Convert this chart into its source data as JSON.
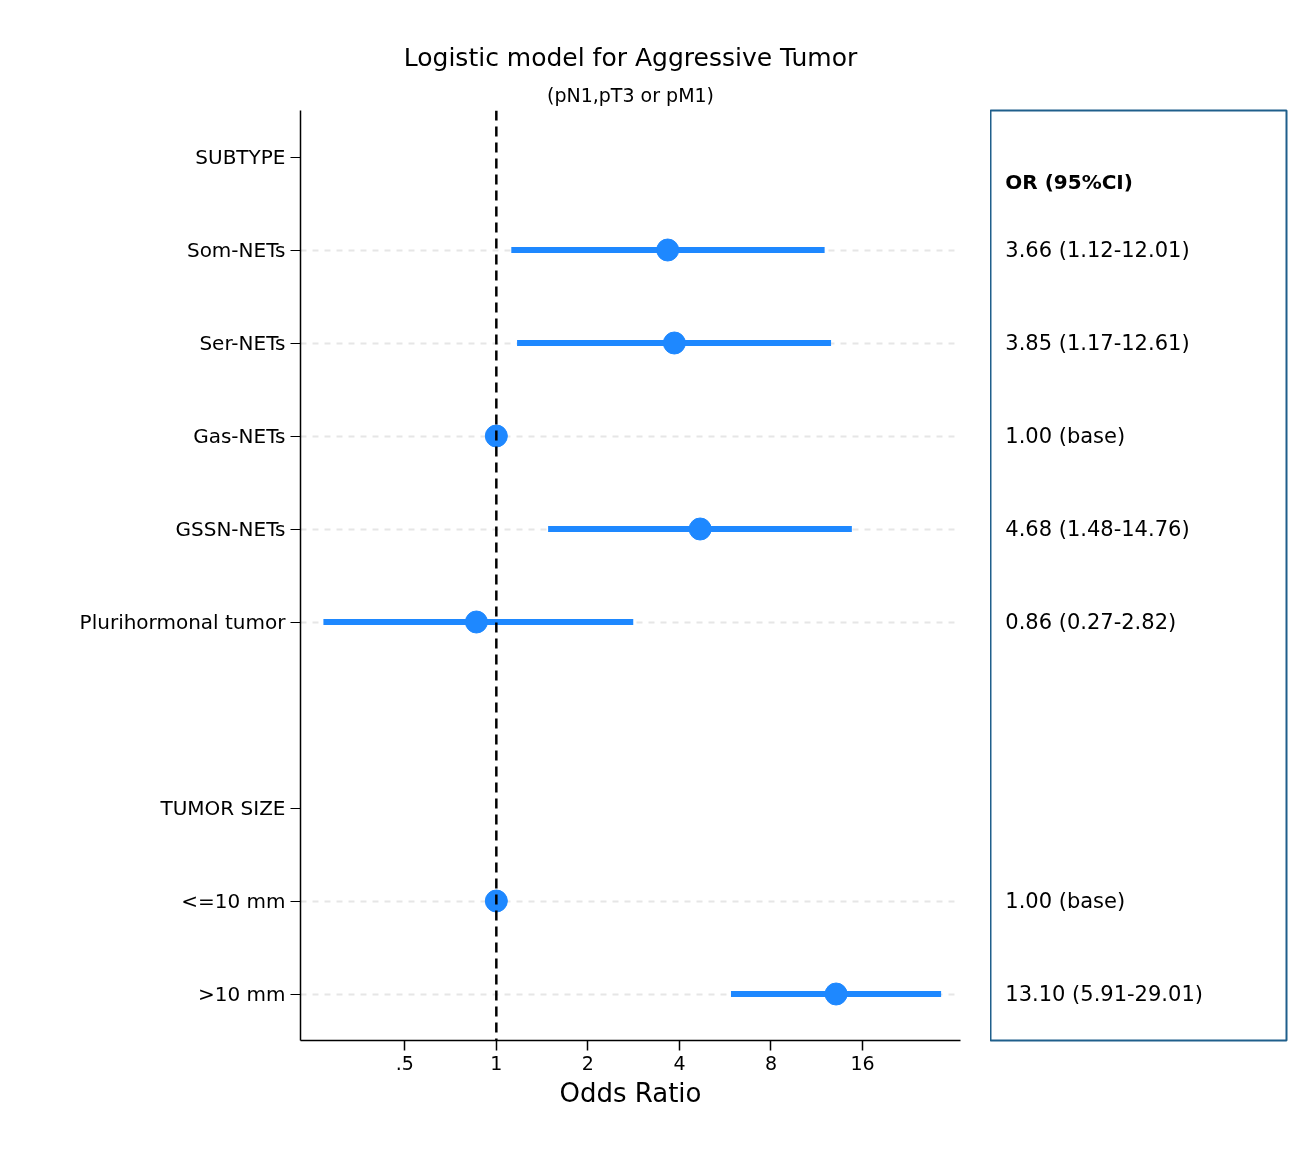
{
  "chart_data": {
    "type": "scatter",
    "orientation": "horizontal",
    "title": "Logistic model for Aggressive Tumor",
    "subtitle": "(pN1,pT3 or pM1)",
    "xlabel": "Odds Ratio",
    "categories": [
      "SUBTYPE",
      "Som-NETs",
      "Ser-NETs",
      "Gas-NETs",
      "GSSN-NETs",
      "Plurihormonal tumor",
      null,
      "TUMOR SIZE",
      "<=10 mm",
      ">10 mm"
    ],
    "series": [
      {
        "color": "#1e88ff",
        "values": [
          null,
          3.66,
          3.85,
          1.0,
          4.68,
          0.86,
          null,
          null,
          1.0,
          13.1
        ],
        "errors": [
          null,
          [
            1.12,
            12.01
          ],
          [
            1.17,
            12.61
          ],
          null,
          [
            1.48,
            14.76
          ],
          [
            0.27,
            2.82
          ],
          null,
          null,
          null,
          [
            5.91,
            29.01
          ]
        ]
      }
    ],
    "annotations": [
      "OR (95%CI)",
      "3.66 (1.12-12.01)",
      "3.85 (1.17-12.61)",
      "1.00 (base)",
      "4.68 (1.48-14.76)",
      "0.86 (0.27-2.82)",
      "1.00 (base)",
      "13.10 (5.91-29.01)"
    ],
    "log": "x",
    "xlim": [
      0.227,
      33.6
    ],
    "xticks": [
      {
        "value": 0.5,
        "label": ".5"
      },
      1,
      2,
      4,
      8,
      16
    ],
    "ref_lines": [
      {
        "axis": "x",
        "value": 1,
        "color": "#000000",
        "line_style": "dashed"
      }
    ],
    "grid": "y",
    "marker": "circle"
  }
}
